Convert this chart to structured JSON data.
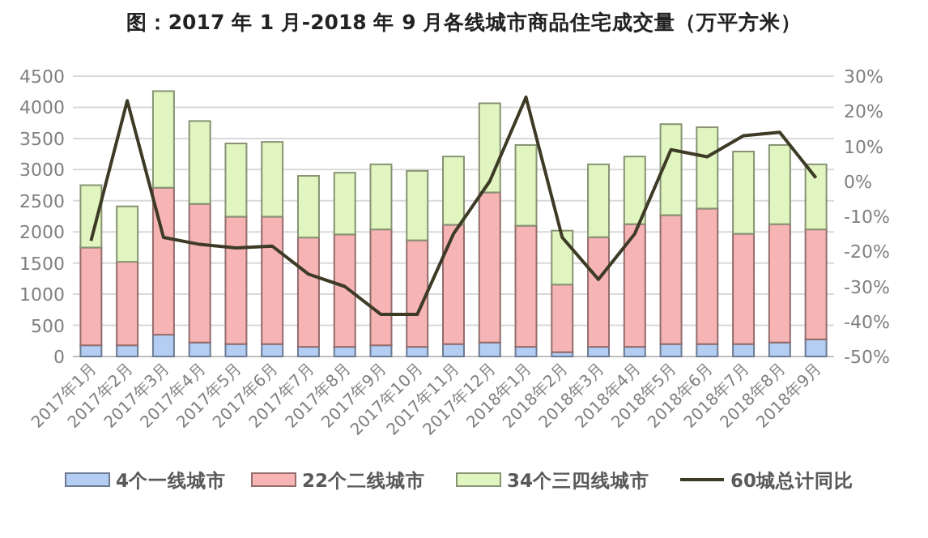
{
  "chart_data": {
    "type": "bar",
    "stacked": true,
    "title": "图：2017 年 1 月-2018 年 9 月各线城市商品住宅成交量（万平方米）",
    "categories": [
      "2017年1月",
      "2017年2月",
      "2017年3月",
      "2017年4月",
      "2017年5月",
      "2017年6月",
      "2017年7月",
      "2017年8月",
      "2017年9月",
      "2017年10月",
      "2017年11月",
      "2017年12月",
      "2018年1月",
      "2018年2月",
      "2018年3月",
      "2018年4月",
      "2018年5月",
      "2018年6月",
      "2018年7月",
      "2018年8月",
      "2018年9月"
    ],
    "series": [
      {
        "name": "4个一线城市",
        "color": "#b4cdf3",
        "values": [
          180,
          180,
          350,
          225,
          200,
          200,
          155,
          155,
          180,
          155,
          200,
          225,
          155,
          70,
          155,
          155,
          200,
          200,
          200,
          225,
          275
        ]
      },
      {
        "name": "22个二线城市",
        "color": "#f7b4b4",
        "values": [
          1570,
          1340,
          2360,
          2225,
          2045,
          2045,
          1755,
          1805,
          1860,
          1710,
          1915,
          2410,
          1945,
          1085,
          1760,
          1970,
          2070,
          2175,
          1770,
          1900,
          1765
        ]
      },
      {
        "name": "34个三四线城市",
        "color": "#e1f5c0",
        "values": [
          1000,
          890,
          1550,
          1330,
          1175,
          1200,
          990,
          990,
          1045,
          1115,
          1095,
          1430,
          1295,
          865,
          1170,
          1085,
          1460,
          1305,
          1320,
          1270,
          1045
        ]
      },
      {
        "name": "60城总计同比",
        "type": "line",
        "axis": "y2",
        "color": "#3d3a26",
        "values": [
          -17,
          23,
          -16,
          -18,
          -19,
          -18.5,
          -26.5,
          -30,
          -38,
          -38,
          -15,
          0,
          24,
          -16,
          -28,
          -15,
          9,
          7,
          13,
          14,
          1
        ]
      }
    ],
    "ylim": [
      0,
      4500
    ],
    "yticks": [
      0,
      500,
      1000,
      1500,
      2000,
      2500,
      3000,
      3500,
      4000,
      4500
    ],
    "y2lim": [
      -50,
      30
    ],
    "y2ticks": [
      {
        "value": -50,
        "label": "-50%"
      },
      {
        "value": -40,
        "label": "-40%"
      },
      {
        "value": -30,
        "label": "-30%"
      },
      {
        "value": -20,
        "label": "-20%"
      },
      {
        "value": -10,
        "label": "-10%"
      },
      {
        "value": 0,
        "label": "0%"
      },
      {
        "value": 10,
        "label": "10%"
      },
      {
        "value": 20,
        "label": "20%"
      },
      {
        "value": 30,
        "label": "30%"
      }
    ],
    "grid": "y",
    "legend": "bottom"
  }
}
